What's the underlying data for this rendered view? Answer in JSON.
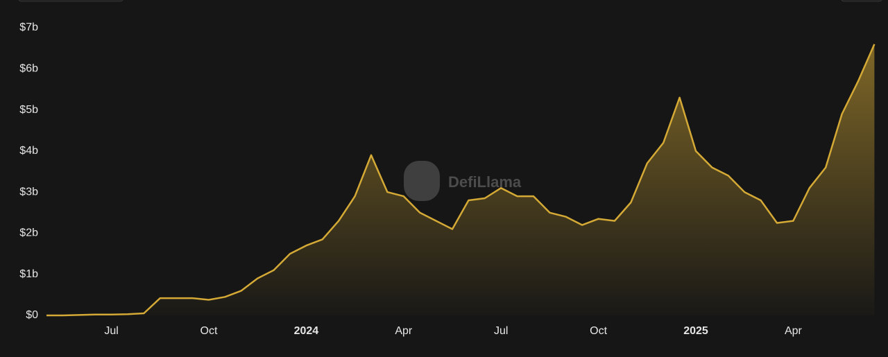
{
  "watermark": "DefiLlama",
  "chart_data": {
    "type": "area",
    "categories": [
      null,
      null,
      null,
      null,
      "Jul",
      null,
      null,
      null,
      null,
      null,
      "Oct",
      null,
      null,
      null,
      null,
      null,
      "2024",
      null,
      null,
      null,
      null,
      null,
      "Apr",
      null,
      null,
      null,
      null,
      null,
      "Jul",
      null,
      null,
      null,
      null,
      null,
      "Oct",
      null,
      null,
      null,
      null,
      null,
      "2025",
      null,
      null,
      null,
      null,
      null,
      "Apr",
      null,
      null,
      null,
      null,
      null
    ],
    "values": [
      0,
      0,
      0.01,
      0.02,
      0.02,
      0.03,
      0.05,
      0.42,
      0.42,
      0.42,
      0.38,
      0.45,
      0.6,
      0.9,
      1.1,
      1.5,
      1.7,
      1.85,
      2.3,
      2.9,
      3.9,
      3.0,
      2.9,
      2.5,
      2.3,
      2.1,
      2.8,
      2.85,
      3.1,
      2.9,
      2.9,
      2.5,
      2.4,
      2.2,
      2.35,
      2.3,
      2.75,
      3.7,
      4.2,
      5.3,
      4.0,
      3.6,
      3.4,
      3.0,
      2.8,
      2.25,
      2.3,
      3.1,
      3.6,
      4.9,
      5.7,
      6.6
    ],
    "color": "#d4a935",
    "ylim": [
      0,
      7
    ],
    "yticks": [
      {
        "value": 0,
        "label": "$0"
      },
      {
        "value": 1,
        "label": "$1b"
      },
      {
        "value": 2,
        "label": "$2b"
      },
      {
        "value": 3,
        "label": "$3b"
      },
      {
        "value": 4,
        "label": "$4b"
      },
      {
        "value": 5,
        "label": "$5b"
      },
      {
        "value": 6,
        "label": "$6b"
      },
      {
        "value": 7,
        "label": "$7b"
      }
    ],
    "grid": false
  }
}
